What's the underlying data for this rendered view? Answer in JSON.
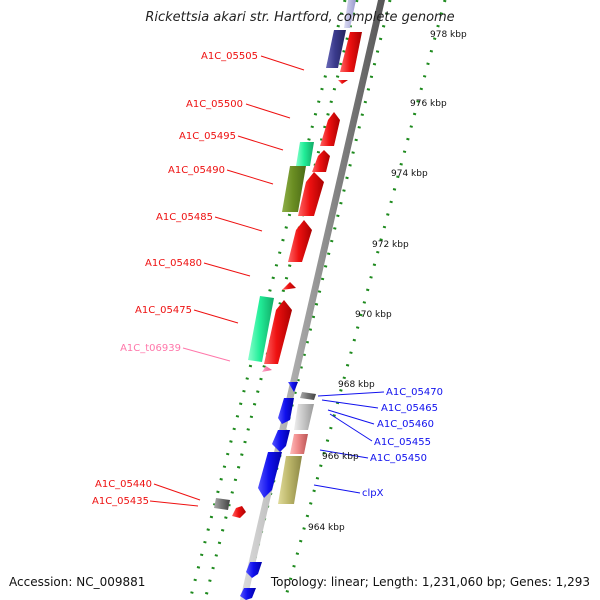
{
  "title": "Rickettsia akari str. Hartford, complete genome",
  "footer": {
    "accession": "Accession: NC_009881",
    "summary": "Topology: linear; Length: 1,231,060 bp; Genes: 1,293"
  },
  "scale_ticks": [
    "978 kbp",
    "976 kbp",
    "974 kbp",
    "972 kbp",
    "970 kbp",
    "968 kbp",
    "966 kbp",
    "964 kbp"
  ],
  "colors": {
    "red": "#ee1111",
    "blue": "#1111ee",
    "teal": "#22ee99",
    "olive": "#6b8e23",
    "khaki": "#bdb76b",
    "navy": "#3a3a8c",
    "gray": "#777777",
    "lightgray": "#c8c8c8",
    "salmon": "#ee8888",
    "pink": "#ff77aa",
    "lightblue": "#b9b9e6"
  },
  "gene_labels_left": [
    {
      "label": "A1C_05505",
      "color": "red"
    },
    {
      "label": "A1C_05500",
      "color": "red"
    },
    {
      "label": "A1C_05495",
      "color": "red"
    },
    {
      "label": "A1C_05490",
      "color": "red"
    },
    {
      "label": "A1C_05485",
      "color": "red"
    },
    {
      "label": "A1C_05480",
      "color": "red"
    },
    {
      "label": "A1C_05475",
      "color": "red"
    },
    {
      "label": "A1C_t06939",
      "color": "pink"
    },
    {
      "label": "A1C_05440",
      "color": "red"
    },
    {
      "label": "A1C_05435",
      "color": "red"
    }
  ],
  "gene_labels_right": [
    {
      "label": "A1C_05470",
      "color": "blue"
    },
    {
      "label": "A1C_05465",
      "color": "blue"
    },
    {
      "label": "A1C_05460",
      "color": "blue"
    },
    {
      "label": "A1C_05455",
      "color": "blue"
    },
    {
      "label": "A1C_05450",
      "color": "blue"
    },
    {
      "label": "clpX",
      "color": "blue"
    }
  ]
}
